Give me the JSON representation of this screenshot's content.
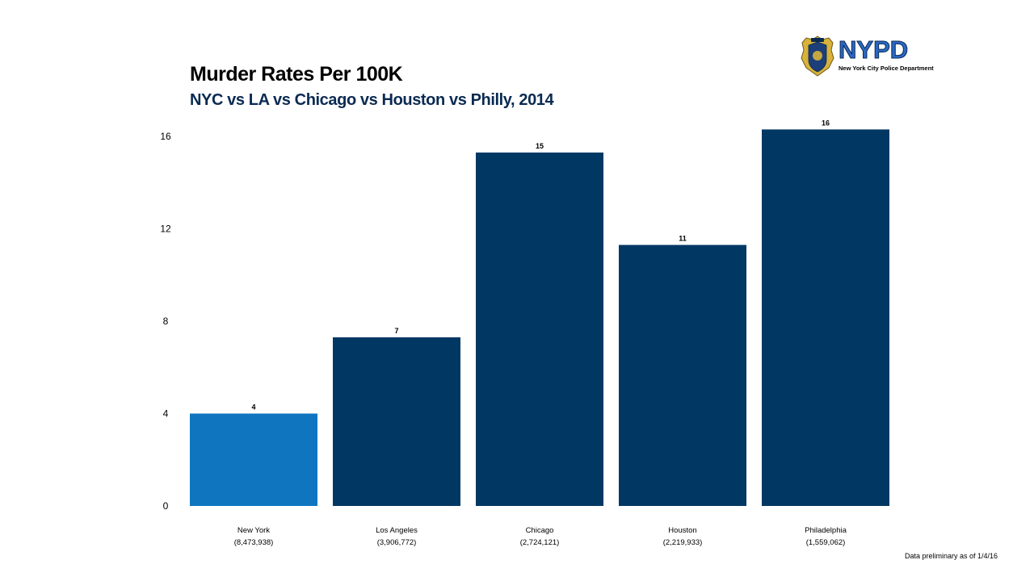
{
  "logo": {
    "wordmark": "NYPD",
    "tagline": "New York City Police Department",
    "shield_color": "#1c3f7a",
    "badge_color": "#d8b23a"
  },
  "footnote": "Data preliminary as of 1/4/16",
  "chart_data": {
    "type": "bar",
    "title": "Murder Rates Per 100K",
    "subtitle": "NYC vs LA vs Chicago vs Houston vs Philly, 2014",
    "xlabel": "",
    "ylabel": "",
    "categories": [
      "New York",
      "Los Angeles",
      "Chicago",
      "Houston",
      "Philadelphia"
    ],
    "category_sublabels": [
      "(8,473,938)",
      "(3,906,772)",
      "(2,724,121)",
      "(2,219,933)",
      "(1,559,062)"
    ],
    "values": [
      4,
      7.3,
      15.3,
      11.3,
      16.3
    ],
    "data_labels": [
      "4",
      "7",
      "15",
      "11",
      "16"
    ],
    "ylim": [
      0,
      16.8
    ],
    "yticks": [
      0,
      4,
      8,
      12,
      16
    ],
    "grid": false,
    "legend": "none",
    "colors": [
      "#0f75bf",
      "#003763",
      "#003763",
      "#003763",
      "#003763"
    ]
  }
}
